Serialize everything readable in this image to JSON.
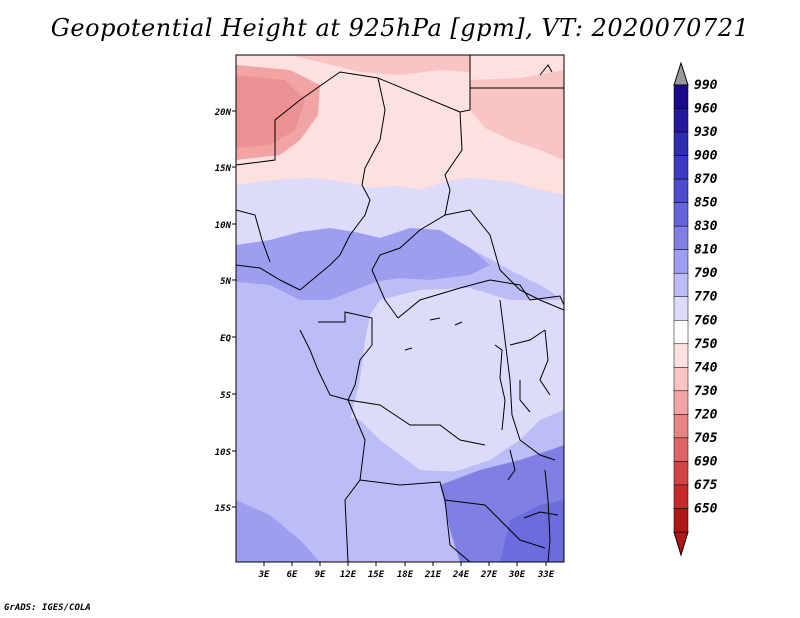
{
  "title": "Geopotential Height at 925hPa [gpm], VT: 2020070721",
  "credit": "GrADS: IGES/COLA",
  "map": {
    "lat_labels": [
      "20N",
      "15N",
      "10N",
      "5N",
      "EQ",
      "5S",
      "10S",
      "15S"
    ],
    "lon_labels": [
      "3E",
      "6E",
      "9E",
      "12E",
      "15E",
      "18E",
      "21E",
      "24E",
      "27E",
      "30E",
      "33E"
    ]
  },
  "colorbar": {
    "levels": [
      "990",
      "960",
      "930",
      "900",
      "870",
      "850",
      "830",
      "810",
      "790",
      "770",
      "760",
      "750",
      "740",
      "730",
      "720",
      "705",
      "690",
      "675",
      "650"
    ],
    "colors": [
      "#1a0a8c",
      "#241aa0",
      "#2e2eb4",
      "#3a3ac4",
      "#4c4cd0",
      "#6464dc",
      "#8080e4",
      "#9e9ef0",
      "#bcbcf6",
      "#dcdcfa",
      "#ffffff",
      "#fde0e0",
      "#f8c4c4",
      "#f2a4a4",
      "#ea8484",
      "#e06464",
      "#d44444",
      "#c82a2a",
      "#b01818"
    ]
  },
  "colors": {
    "pink_light": "#fde0e0",
    "pink_mid": "#f8c4c4",
    "pink_dark": "#f2a4a4",
    "blue_pale": "#dcdcfa",
    "blue_light": "#bcbcf6",
    "blue_mid": "#9e9ef0",
    "blue_dark": "#8080e4"
  }
}
